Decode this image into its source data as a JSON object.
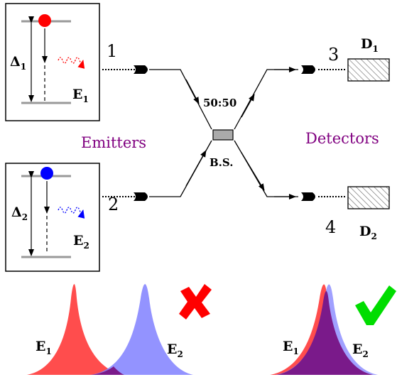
{
  "emitters_label": "Emitters",
  "detectors_label": "Detectors",
  "beam_splitter": {
    "ratio": "50:50",
    "name": "B.S."
  },
  "ports": [
    "1",
    "2",
    "3",
    "4"
  ],
  "emitter1": {
    "name": "E",
    "sub": "1",
    "gap": "Δ",
    "gap_sub": "1",
    "color": "#ff0000"
  },
  "emitter2": {
    "name": "E",
    "sub": "2",
    "gap": "Δ",
    "gap_sub": "2",
    "color": "#0000ff"
  },
  "detector1": {
    "name": "D",
    "sub": "1"
  },
  "detector2": {
    "name": "D",
    "sub": "2"
  },
  "spectra_left": {
    "e1": "E",
    "e1_sub": "1",
    "e2": "E",
    "e2_sub": "2",
    "mark": "cross",
    "mark_color": "#ff0000"
  },
  "spectra_right": {
    "e1": "E",
    "e1_sub": "1",
    "e2": "E",
    "e2_sub": "2",
    "mark": "check",
    "mark_color": "#00cc00"
  },
  "colors": {
    "purple": "#800080",
    "e1_fill": "#ff4d4d",
    "e2_fill": "#8080ff",
    "overlap": "#7a1a8a"
  }
}
